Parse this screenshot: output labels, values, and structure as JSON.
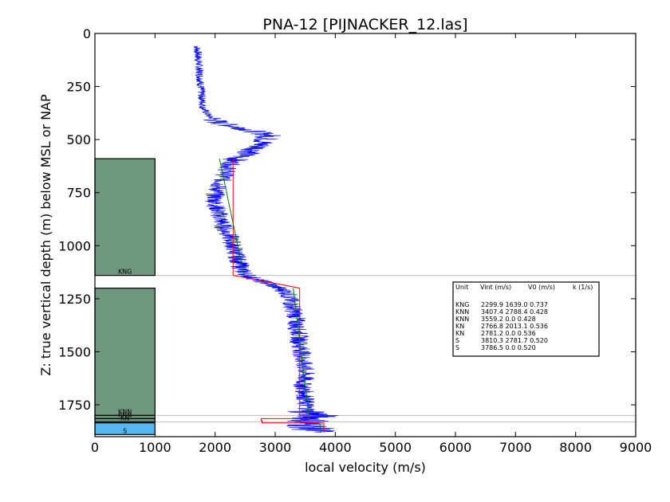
{
  "chart_data": {
    "type": "line",
    "title": "PNA-12 [PIJNACKER_12.las]",
    "xlabel": "local velocity (m/s)",
    "ylabel": "Z: true vertical depth (m) below MSL or NAP",
    "xlim": [
      0,
      9000
    ],
    "ylim": [
      1900,
      0
    ],
    "xticks": [
      "0",
      "1000",
      "2000",
      "3000",
      "4000",
      "5000",
      "6000",
      "7000",
      "8000",
      "9000"
    ],
    "yticks": [
      "0",
      "250",
      "500",
      "750",
      "1000",
      "1250",
      "1500",
      "1750"
    ],
    "grid": false,
    "colors": {
      "log": "#0000ff",
      "interval_velocity": "#ff0000",
      "linear_model": "#008000",
      "unit_fill": "#6f967f",
      "s_unit_fill": "#55b8f0",
      "boundary": "#bbbbbb"
    },
    "units": [
      {
        "name": "KNG",
        "top": 590,
        "base": 1140,
        "color": "#6f967f"
      },
      {
        "name": "",
        "top": 1140,
        "base": 1200,
        "color": "#ffffff"
      },
      {
        "name": "KNN",
        "top": 1200,
        "base": 1800,
        "color": "#6f967f"
      },
      {
        "name": "KNN",
        "top": 1800,
        "base": 1815,
        "color": "#6f967f"
      },
      {
        "name": "KN",
        "top": 1815,
        "base": 1830,
        "color": "#6f967f"
      },
      {
        "name": "S",
        "top": 1835,
        "base": 1890,
        "color": "#55b8f0"
      }
    ],
    "boundaries": [
      1140,
      1800,
      1830
    ],
    "interval_velocity_steps": [
      {
        "top": 590,
        "base": 1140,
        "v": 2299.9
      },
      {
        "top": 1200,
        "base": 1800,
        "v": 3407.4
      },
      {
        "top": 1800,
        "base": 1815,
        "v": 3559.2
      },
      {
        "top": 1815,
        "base": 1825,
        "v": 2766.8
      },
      {
        "top": 1825,
        "base": 1835,
        "v": 2781.2
      },
      {
        "top": 1835,
        "base": 1880,
        "v": 3810.3
      }
    ],
    "linear_model": [
      {
        "top": 590,
        "base": 1140,
        "v_top": 2074,
        "v_base": 2480
      },
      {
        "top": 1200,
        "base": 1800,
        "v_top": 3300,
        "v_base": 3560
      },
      {
        "top": 1835,
        "base": 1880,
        "v_top": 3740,
        "v_base": 3760
      }
    ],
    "log_profile": [
      [
        60,
        1700
      ],
      [
        120,
        1720
      ],
      [
        180,
        1740
      ],
      [
        240,
        1760
      ],
      [
        300,
        1780
      ],
      [
        350,
        1800
      ],
      [
        390,
        1900
      ],
      [
        420,
        2050
      ],
      [
        450,
        2500
      ],
      [
        480,
        2900
      ],
      [
        510,
        2800
      ],
      [
        540,
        2700
      ],
      [
        570,
        2500
      ],
      [
        600,
        2300
      ],
      [
        640,
        2200
      ],
      [
        680,
        2150
      ],
      [
        720,
        2050
      ],
      [
        760,
        2000
      ],
      [
        800,
        2000
      ],
      [
        840,
        2050
      ],
      [
        880,
        2100
      ],
      [
        920,
        2150
      ],
      [
        960,
        2250
      ],
      [
        1000,
        2300
      ],
      [
        1040,
        2350
      ],
      [
        1080,
        2400
      ],
      [
        1120,
        2450
      ],
      [
        1150,
        2600
      ],
      [
        1180,
        2900
      ],
      [
        1220,
        3200
      ],
      [
        1260,
        3250
      ],
      [
        1300,
        3300
      ],
      [
        1340,
        3350
      ],
      [
        1380,
        3350
      ],
      [
        1420,
        3400
      ],
      [
        1460,
        3400
      ],
      [
        1500,
        3450
      ],
      [
        1540,
        3450
      ],
      [
        1580,
        3500
      ],
      [
        1620,
        3500
      ],
      [
        1660,
        3450
      ],
      [
        1700,
        3500
      ],
      [
        1740,
        3500
      ],
      [
        1780,
        3550
      ],
      [
        1800,
        3700
      ],
      [
        1820,
        3600
      ],
      [
        1840,
        3500
      ],
      [
        1860,
        3600
      ],
      [
        1880,
        3700
      ]
    ],
    "table": {
      "headers": [
        "Unit",
        "Vint (m/s)",
        "V0 (m/s)",
        "k (1/s)"
      ],
      "rows": [
        {
          "unit": "KNG",
          "values": "2299.9  1639.0  0.737"
        },
        {
          "unit": "KNN",
          "values": "3407.4  2788.4  0.428"
        },
        {
          "unit": "KNN",
          "values": "3559.2  0.0     0.428"
        },
        {
          "unit": "KN",
          "values": "2766.8  2013.1  0.536"
        },
        {
          "unit": "KN",
          "values": "2781.2  0.0     0.536"
        },
        {
          "unit": "S",
          "values": "3810.3  2781.7  0.520"
        },
        {
          "unit": "S",
          "values": "3786.5  0.0     0.520"
        }
      ]
    }
  }
}
